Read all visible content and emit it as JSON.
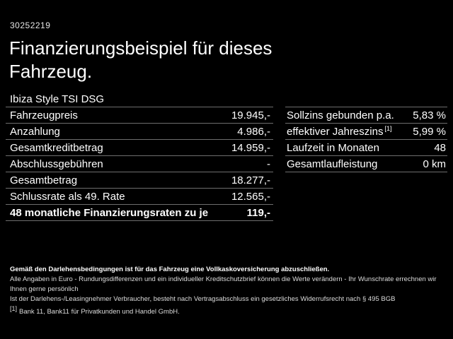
{
  "page": {
    "ref_number": "30252219",
    "title_line1": "Finanzierungsbeispiel für dieses",
    "title_line2": "Fahrzeug."
  },
  "left_table": {
    "header": "Ibiza Style TSI DSG",
    "rows": [
      {
        "label": "Fahrzeugpreis",
        "value": "19.945,-"
      },
      {
        "label": "Anzahlung",
        "value": "4.986,-"
      },
      {
        "label": "Gesamtkreditbetrag",
        "value": "14.959,-"
      },
      {
        "label": "Abschlussgebühren",
        "value": "-"
      },
      {
        "label": "Gesamtbetrag",
        "value": "18.277,-"
      },
      {
        "label": "Schlussrate als 49. Rate",
        "value": "12.565,-"
      },
      {
        "label": "48 monatliche Finanzierungsraten zu je",
        "value": "119,-"
      }
    ]
  },
  "right_table": {
    "rows": [
      {
        "label": "Sollzins gebunden p.a.",
        "sup": "",
        "value": "5,83 %"
      },
      {
        "label": "effektiver Jahreszins",
        "sup": "[1]",
        "value": "5,99 %"
      },
      {
        "label": "Laufzeit in Monaten",
        "sup": "",
        "value": "48"
      },
      {
        "label": "Gesamtlaufleistung",
        "sup": "",
        "value": "0 km"
      }
    ]
  },
  "footer": {
    "line1": "Gemäß den Darlehensbedingungen ist für das Fahrzeug eine Vollkaskoversicherung abzuschließen.",
    "line2": "Alle Angaben in Euro - Rundungsdifferenzen und ein individueller Kreditschutzbrief können die Werte verändern - Ihr Wunschrate errechnen wir Ihnen gerne persönlich",
    "line3": "Ist der Darlehens-/Leasingnehmer Verbraucher, besteht nach Vertragsabschluss ein gesetzliches Widerrufsrecht nach § 495 BGB",
    "footnote_marker": "[1]",
    "footnote_text": "Bank 11, Bank11 für Privatkunden und Handel GmbH."
  },
  "colors": {
    "background": "#000000",
    "text": "#ffffff",
    "separator": "#6e6e6e"
  }
}
